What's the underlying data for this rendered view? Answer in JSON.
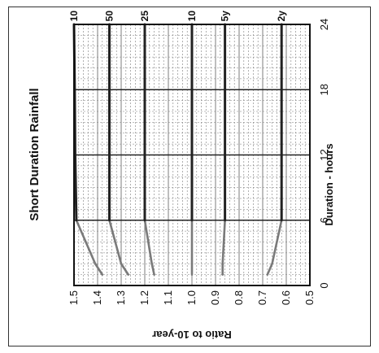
{
  "chart_data": {
    "type": "line",
    "title": "Short Duration Rainfall",
    "xlabel": "Duration  -  hours",
    "ylabel": "Ratio to 10-year",
    "x_ticks": [
      "0",
      "6",
      "12",
      "18",
      "24"
    ],
    "y_ticks": [
      "1.5",
      "1.4",
      "1.3",
      "1.2",
      "1.1",
      "1.0",
      "0.9",
      "0.8",
      "0.7",
      "0.6",
      "0.5"
    ],
    "xlim": [
      0,
      24
    ],
    "ylim": [
      0.5,
      1.5
    ],
    "grid": true,
    "orientation": "rotated 90 degrees counter-clockwise",
    "series": [
      {
        "name": "10",
        "x": [
          1,
          2,
          6,
          12,
          18,
          24
        ],
        "y": [
          1.38,
          1.41,
          1.49,
          1.495,
          1.497,
          1.5
        ]
      },
      {
        "name": "50",
        "x": [
          1,
          2,
          6,
          12,
          18,
          24
        ],
        "y": [
          1.27,
          1.3,
          1.35,
          1.35,
          1.35,
          1.35
        ]
      },
      {
        "name": "25",
        "x": [
          1,
          2,
          6,
          12,
          18,
          24
        ],
        "y": [
          1.16,
          1.17,
          1.2,
          1.2,
          1.2,
          1.2
        ]
      },
      {
        "name": "10",
        "x": [
          1,
          2,
          6,
          12,
          18,
          24
        ],
        "y": [
          1.0,
          1.0,
          1.0,
          1.0,
          1.0,
          1.0
        ]
      },
      {
        "name": "5y",
        "x": [
          1,
          2,
          6,
          12,
          18,
          24
        ],
        "y": [
          0.87,
          0.87,
          0.86,
          0.86,
          0.86,
          0.86
        ]
      },
      {
        "name": "2y",
        "x": [
          1,
          2,
          6,
          12,
          18,
          24
        ],
        "y": [
          0.68,
          0.66,
          0.62,
          0.62,
          0.62,
          0.62
        ]
      }
    ],
    "colors": {
      "line": "#222222",
      "transition_segment": "#7a7a7a",
      "grid": "#7d7d7d"
    }
  }
}
